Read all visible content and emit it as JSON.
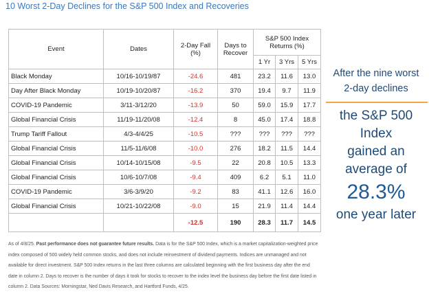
{
  "title": "10 Worst 2-Day Declines for the S&P 500 Index and Recoveries",
  "table": {
    "headers": {
      "event": "Event",
      "dates": "Dates",
      "fall": "2-Day Fall (%)",
      "days": "Days to Recover",
      "group": "S&P 500 Index Returns (%)",
      "y1": "1 Yr",
      "y3": "3 Yrs",
      "y5": "5 Yrs"
    },
    "rows": [
      [
        "Black Monday",
        "10/16-10/19/87",
        "-24.6",
        "481",
        "23.2",
        "11.6",
        "13.0"
      ],
      [
        "Day After Black Monday",
        "10/19-10/20/87",
        "-16.2",
        "370",
        "19.4",
        "9.7",
        "11.9"
      ],
      [
        "COVID-19 Pandemic",
        "3/11-3/12/20",
        "-13.9",
        "50",
        "59.0",
        "15.9",
        "17.7"
      ],
      [
        "Global Financial Crisis",
        "11/19-11/20/08",
        "-12.4",
        "8",
        "45.0",
        "17.4",
        "18.8"
      ],
      [
        "Trump Tariff Fallout",
        "4/3-4/4/25",
        "-10.5",
        "???",
        "???",
        "???",
        "???"
      ],
      [
        "Global Financial Crisis",
        "11/5-11/6/08",
        "-10.0",
        "276",
        "18.2",
        "11.5",
        "14.4"
      ],
      [
        "Global Financial Crisis",
        "10/14-10/15/08",
        "-9.5",
        "22",
        "20.8",
        "10.5",
        "13.3"
      ],
      [
        "Global Financial Crisis",
        "10/6-10/7/08",
        "-9.4",
        "409",
        "6.2",
        "5.1",
        "11.0"
      ],
      [
        "COVID-19 Pandemic",
        "3/6-3/9/20",
        "-9.2",
        "83",
        "41.1",
        "12.6",
        "16.0"
      ],
      [
        "Global Financial Crisis",
        "10/21-10/22/08",
        "-9.0",
        "15",
        "21.9",
        "11.4",
        "14.4"
      ]
    ],
    "average": {
      "fall": "-12.5",
      "days": "190",
      "y1": "28.3",
      "y3": "11.7",
      "y5": "14.5"
    }
  },
  "side": {
    "lead": [
      "After the nine worst",
      "2-day declines"
    ],
    "body": [
      "the S&P 500",
      "Index",
      "gained an",
      "average of"
    ],
    "figure": "28.3%",
    "tail": "one year later"
  },
  "footnote": {
    "date": "As of 4/8/25.",
    "bold": "Past performance does not guarantee future results.",
    "text": "Data is for the S&P 500 Index, which is a market capitalization-weighted price index composed of 500 widely held common stocks, and does not include reinvestment of dividend payments. Indices are unmanaged and not available for direct investment. S&P 500 Index returns in the last three columns are calculated beginning with the first business day after the end date in column 2. Days to recover is the number of days it took for stocks to recover to the index level the business day before the first date listed in column 2. Data Sources: Morningstar, Ned Davis Research, and Hartford Funds, 4/25."
  }
}
